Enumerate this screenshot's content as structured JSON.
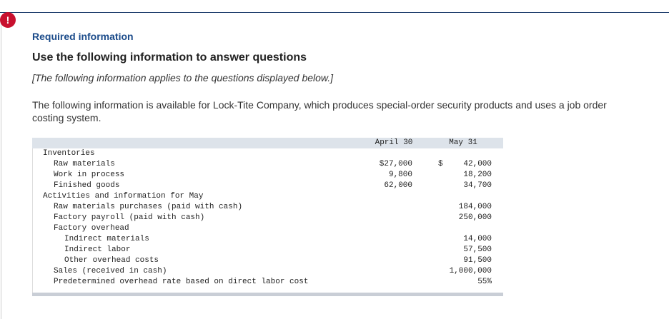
{
  "header": {
    "icon": "!",
    "title": "Required information",
    "heading": "Use the following information to answer questions",
    "note": "[The following information applies to the questions displayed below.]"
  },
  "intro": "The following information is available for Lock-Tite Company, which produces special-order security products and uses a job order costing system.",
  "table": {
    "columns": [
      "April 30",
      "May 31"
    ],
    "sections": [
      {
        "label": "Inventories",
        "rows": [
          {
            "label": "Raw materials",
            "april": "$27,000",
            "may_symbol": "$",
            "may": "42,000"
          },
          {
            "label": "Work in process",
            "april": "9,800",
            "may": "18,200"
          },
          {
            "label": "Finished goods",
            "april": "62,000",
            "may": "34,700"
          }
        ]
      },
      {
        "label": "Activities and information for May",
        "rows": [
          {
            "label": "Raw materials purchases (paid with cash)",
            "may": "184,000"
          },
          {
            "label": "Factory payroll (paid with cash)",
            "may": "250,000"
          },
          {
            "label": "Factory overhead",
            "rows": [
              {
                "label": "Indirect materials",
                "may": "14,000"
              },
              {
                "label": "Indirect labor",
                "may": "57,500"
              },
              {
                "label": "Other overhead costs",
                "may": "91,500"
              }
            ]
          },
          {
            "label": "Sales (received in cash)",
            "may": "1,000,000"
          },
          {
            "label": "Predetermined overhead rate based on direct labor cost",
            "may": "55%"
          }
        ]
      }
    ]
  }
}
